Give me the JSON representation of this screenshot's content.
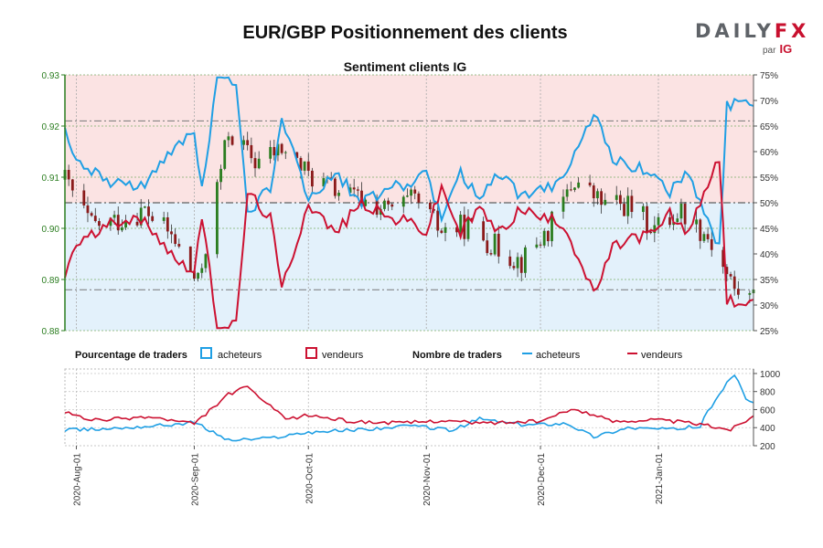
{
  "title": "EUR/GBP Positionnement des clients",
  "brand": {
    "name_main": "DAILY",
    "name_accent": "FX",
    "by": "par",
    "by_brand": "IG"
  },
  "colors": {
    "buyers": "#1f9fe4",
    "sellers": "#cc1131",
    "candle_up": "#2a7d1f",
    "candle_down": "#8b1a1a",
    "shade_sell": "#fbe3e3",
    "shade_buy": "#e3f1fb",
    "left_axis": "#2a7d1f"
  },
  "legend": {
    "pct_title": "Pourcentage de traders",
    "pct_buyers": "acheteurs",
    "pct_sellers": "vendeurs",
    "count_title": "Nombre de traders",
    "count_buyers": "acheteurs",
    "count_sellers": "vendeurs"
  },
  "chart_data": [
    {
      "type": "candlestick",
      "title": "Sentiment clients IG",
      "y_left": {
        "ticks": [
          "0.88",
          "0.89",
          "0.90",
          "0.91",
          "0.92",
          "0.93"
        ],
        "range": [
          0.88,
          0.93
        ]
      },
      "y_right": {
        "ticks": [
          "25%",
          "30%",
          "35%",
          "40%",
          "45%",
          "50%",
          "55%",
          "60%",
          "65%",
          "70%",
          "75%"
        ],
        "range": [
          25,
          75
        ]
      },
      "reference_lines": [
        0.921,
        0.905,
        0.888
      ],
      "price_path": [
        [
          "2020-07-29",
          0.9095
        ],
        [
          "2020-08-05",
          0.9005
        ],
        [
          "2020-08-12",
          0.9015
        ],
        [
          "2020-08-19",
          0.9035
        ],
        [
          "2020-08-26",
          0.8985
        ],
        [
          "2020-09-02",
          0.889
        ],
        [
          "2020-09-10",
          0.919
        ],
        [
          "2020-09-17",
          0.913
        ],
        [
          "2020-09-24",
          0.9155
        ],
        [
          "2020-10-01",
          0.9105
        ],
        [
          "2020-10-08",
          0.9075
        ],
        [
          "2020-10-15",
          0.9055
        ],
        [
          "2020-10-22",
          0.9035
        ],
        [
          "2020-10-29",
          0.9055
        ],
        [
          "2020-11-05",
          0.8995
        ],
        [
          "2020-11-12",
          0.9005
        ],
        [
          "2020-11-19",
          0.8965
        ],
        [
          "2020-11-26",
          0.8935
        ],
        [
          "2020-12-03",
          0.8995
        ],
        [
          "2020-12-10",
          0.9095
        ],
        [
          "2020-12-17",
          0.905
        ],
        [
          "2020-12-24",
          0.9045
        ],
        [
          "2020-12-31",
          0.9
        ],
        [
          "2021-01-07",
          0.9035
        ],
        [
          "2021-01-14",
          0.8985
        ],
        [
          "2021-01-21",
          0.888
        ],
        [
          "2021-01-25",
          0.8865
        ]
      ],
      "sellers_pct_path": [
        [
          "2020-07-29",
          36
        ],
        [
          "2020-08-01",
          42
        ],
        [
          "2020-08-06",
          44
        ],
        [
          "2020-08-13",
          47
        ],
        [
          "2020-08-20",
          46
        ],
        [
          "2020-08-27",
          39
        ],
        [
          "2020-09-01",
          37
        ],
        [
          "2020-09-03",
          47
        ],
        [
          "2020-09-07",
          26
        ],
        [
          "2020-09-12",
          26
        ],
        [
          "2020-09-15",
          52
        ],
        [
          "2020-09-21",
          47
        ],
        [
          "2020-09-24",
          33
        ],
        [
          "2020-10-01",
          50
        ],
        [
          "2020-10-08",
          44
        ],
        [
          "2020-10-15",
          50
        ],
        [
          "2020-10-22",
          47
        ],
        [
          "2020-10-29",
          46
        ],
        [
          "2020-11-01",
          44
        ],
        [
          "2020-11-05",
          53
        ],
        [
          "2020-11-10",
          44
        ],
        [
          "2020-11-15",
          49
        ],
        [
          "2020-11-20",
          44
        ],
        [
          "2020-11-26",
          49
        ],
        [
          "2020-12-01",
          47
        ],
        [
          "2020-12-07",
          46
        ],
        [
          "2020-12-10",
          41
        ],
        [
          "2020-12-15",
          32
        ],
        [
          "2020-12-20",
          41
        ],
        [
          "2020-12-24",
          43
        ],
        [
          "2020-12-31",
          44
        ],
        [
          "2021-01-04",
          48
        ],
        [
          "2021-01-08",
          44
        ],
        [
          "2021-01-13",
          51
        ],
        [
          "2021-01-17",
          59
        ],
        [
          "2021-01-19",
          31
        ],
        [
          "2021-01-26",
          30
        ]
      ],
      "x_labels": [
        "2020-Aug-01",
        "2020-Sep-01",
        "2020-Oct-01",
        "2020-Nov-01",
        "2020-Dec-01",
        "2021-Jan-01"
      ],
      "x_range": [
        "2020-07-29",
        "2021-01-26"
      ],
      "grid": true,
      "legend": "bottom"
    },
    {
      "type": "line",
      "y_ticks": [
        "200",
        "400",
        "600",
        "800",
        "1000"
      ],
      "ylim": [
        200,
        1050
      ],
      "series": [
        {
          "name": "acheteurs",
          "values": [
            [
              "2020-07-29",
              370
            ],
            [
              "2020-08-10",
              390
            ],
            [
              "2020-08-25",
              430
            ],
            [
              "2020-09-01",
              460
            ],
            [
              "2020-09-10",
              260
            ],
            [
              "2020-09-20",
              280
            ],
            [
              "2020-10-01",
              350
            ],
            [
              "2020-10-15",
              380
            ],
            [
              "2020-10-29",
              420
            ],
            [
              "2020-11-08",
              370
            ],
            [
              "2020-11-15",
              500
            ],
            [
              "2020-11-26",
              430
            ],
            [
              "2020-12-08",
              450
            ],
            [
              "2020-12-15",
              300
            ],
            [
              "2020-12-24",
              400
            ],
            [
              "2021-01-05",
              380
            ],
            [
              "2021-01-12",
              420
            ],
            [
              "2021-01-16",
              720
            ],
            [
              "2021-01-21",
              1000
            ],
            [
              "2021-01-24",
              700
            ],
            [
              "2021-01-26",
              690
            ]
          ]
        },
        {
          "name": "vendeurs",
          "values": [
            [
              "2020-07-29",
              570
            ],
            [
              "2020-08-05",
              480
            ],
            [
              "2020-08-20",
              520
            ],
            [
              "2020-09-01",
              440
            ],
            [
              "2020-09-10",
              770
            ],
            [
              "2020-09-15",
              850
            ],
            [
              "2020-09-25",
              490
            ],
            [
              "2020-10-01",
              540
            ],
            [
              "2020-10-12",
              470
            ],
            [
              "2020-10-25",
              450
            ],
            [
              "2020-11-05",
              480
            ],
            [
              "2020-11-15",
              450
            ],
            [
              "2020-12-01",
              470
            ],
            [
              "2020-12-10",
              610
            ],
            [
              "2020-12-20",
              470
            ],
            [
              "2020-12-31",
              490
            ],
            [
              "2021-01-10",
              450
            ],
            [
              "2021-01-20",
              380
            ],
            [
              "2021-01-26",
              530
            ]
          ]
        }
      ]
    }
  ]
}
